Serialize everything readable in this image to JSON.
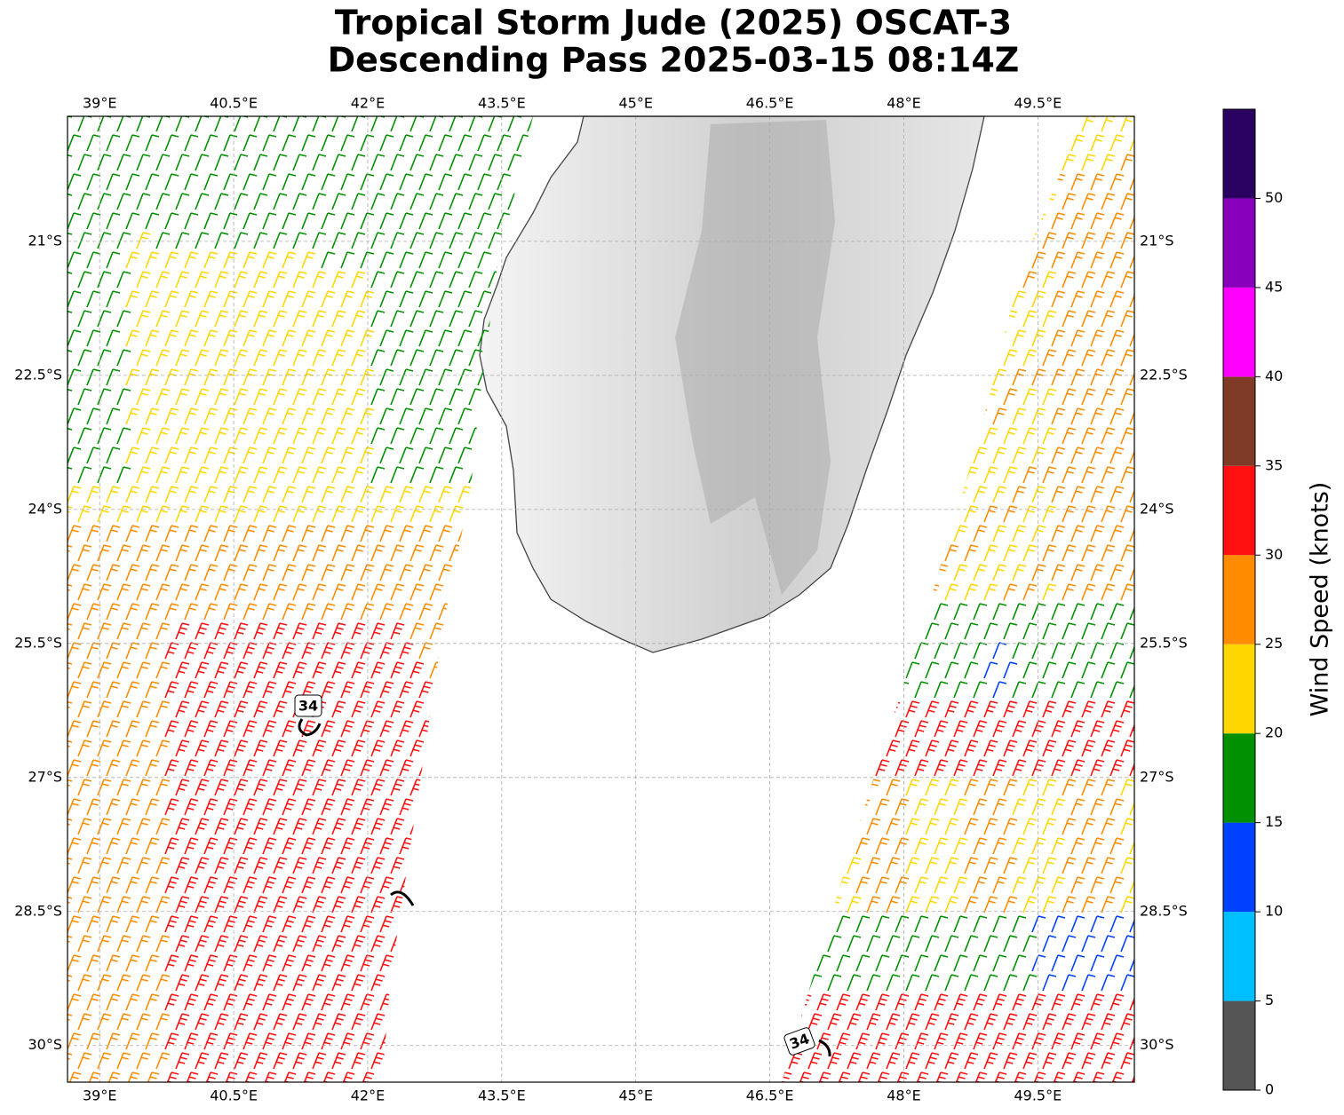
{
  "map": {
    "title": [
      "Tropical Storm Jude (2025) OSCAT-3",
      "Descending Pass 2025-03-15 08:14Z"
    ],
    "xlim": [
      38.64,
      50.58
    ],
    "ylim": [
      -30.41,
      -19.6
    ],
    "xticks": [
      {
        "value": 39,
        "label": "39°E"
      },
      {
        "value": 40.5,
        "label": "40.5°E"
      },
      {
        "value": 42,
        "label": "42°E"
      },
      {
        "value": 43.5,
        "label": "43.5°E"
      },
      {
        "value": 45,
        "label": "45°E"
      },
      {
        "value": 46.5,
        "label": "46.5°E"
      },
      {
        "value": 48,
        "label": "48°E"
      },
      {
        "value": 49.5,
        "label": "49.5°E"
      }
    ],
    "yticks": [
      {
        "value": -21,
        "label": "21°S"
      },
      {
        "value": -22.5,
        "label": "22.5°S"
      },
      {
        "value": -24,
        "label": "24°S"
      },
      {
        "value": -25.5,
        "label": "25.5°S"
      },
      {
        "value": -27,
        "label": "27°S"
      },
      {
        "value": -28.5,
        "label": "28.5°S"
      },
      {
        "value": -30,
        "label": "30°S"
      }
    ],
    "contour_labels": [
      "34",
      "34"
    ],
    "colorbar": {
      "label": "Wind Speed (knots)",
      "lim": [
        0,
        55
      ],
      "bounds": [
        0,
        5,
        10,
        15,
        20,
        25,
        30,
        35,
        40,
        45,
        50,
        55
      ],
      "colors": [
        "#555555",
        "#00bfff",
        "#0040ff",
        "#009000",
        "#ffd700",
        "#ff8c00",
        "#ff1010",
        "#7f3b28",
        "#ff00ff",
        "#8800bb",
        "#2a0060"
      ],
      "ticks": [
        0,
        5,
        10,
        15,
        20,
        25,
        30,
        35,
        40,
        45,
        50
      ]
    }
  }
}
